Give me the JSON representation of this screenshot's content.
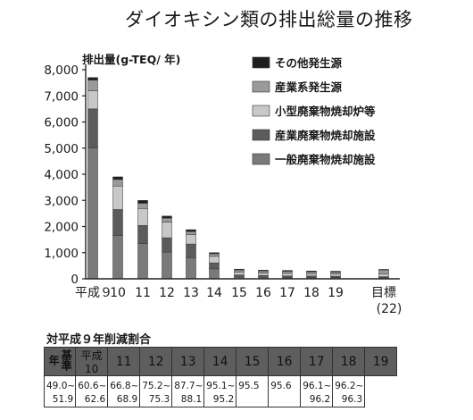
{
  "page_title": "ダイオキシン類の排出総量の推移",
  "chart_data": {
    "type": "bar",
    "stacked": true,
    "title": "ダイオキシン類の排出総量の推移",
    "ylabel": "排出量(g-TEQ/ 年)",
    "xlabel": "",
    "ylim": [
      0,
      8000
    ],
    "yticks": [
      "0",
      "1,000",
      "2,000",
      "3,000",
      "4,000",
      "5,000",
      "6,000",
      "7,000",
      "8,000"
    ],
    "categories": [
      "平成９",
      "10",
      "11",
      "12",
      "13",
      "14",
      "15",
      "16",
      "17",
      "18",
      "19",
      "目標"
    ],
    "target_note": "(22)",
    "legend_position": "top-right",
    "grid": false,
    "series": [
      {
        "name": "一般廃棄物焼却施設",
        "color": "#7a7a7a",
        "values": [
          5000,
          1650,
          1350,
          1020,
          810,
          380,
          70,
          60,
          50,
          50,
          50,
          40
        ]
      },
      {
        "name": "産業廃棄物焼却施設",
        "color": "#5c5c5c",
        "values": [
          1500,
          1000,
          690,
          550,
          520,
          230,
          80,
          70,
          60,
          60,
          50,
          40
        ]
      },
      {
        "name": "小型廃棄物焼却炉等",
        "color": "#c8c8c8",
        "values": [
          700,
          900,
          650,
          600,
          360,
          250,
          110,
          90,
          100,
          90,
          80,
          100
        ]
      },
      {
        "name": "産業系発生源",
        "color": "#9a9a9a",
        "values": [
          400,
          250,
          200,
          150,
          120,
          100,
          80,
          80,
          80,
          70,
          80,
          160
        ]
      },
      {
        "name": "その他発生源",
        "color": "#1e1e1e",
        "values": [
          100,
          100,
          110,
          80,
          70,
          40,
          30,
          30,
          30,
          30,
          30,
          20
        ]
      }
    ]
  },
  "table": {
    "title": "対平成９年削減割合",
    "row_label": "基準年",
    "headers": [
      "平成10",
      "11",
      "12",
      "13",
      "14",
      "15",
      "16",
      "17",
      "18",
      "19"
    ],
    "values": [
      {
        "lo": "49.0~",
        "hi": "51.9"
      },
      {
        "lo": "60.6~",
        "hi": "62.6"
      },
      {
        "lo": "66.8~",
        "hi": "68.9"
      },
      {
        "lo": "75.2~",
        "hi": "75.3"
      },
      {
        "lo": "87.7~",
        "hi": "88.1"
      },
      {
        "lo": "95.1~",
        "hi": "95.2"
      },
      {
        "lo": "95.5",
        "hi": ""
      },
      {
        "lo": "95.6",
        "hi": ""
      },
      {
        "lo": "96.1~",
        "hi": "96.2"
      },
      {
        "lo": "96.2~",
        "hi": "96.3"
      }
    ]
  }
}
